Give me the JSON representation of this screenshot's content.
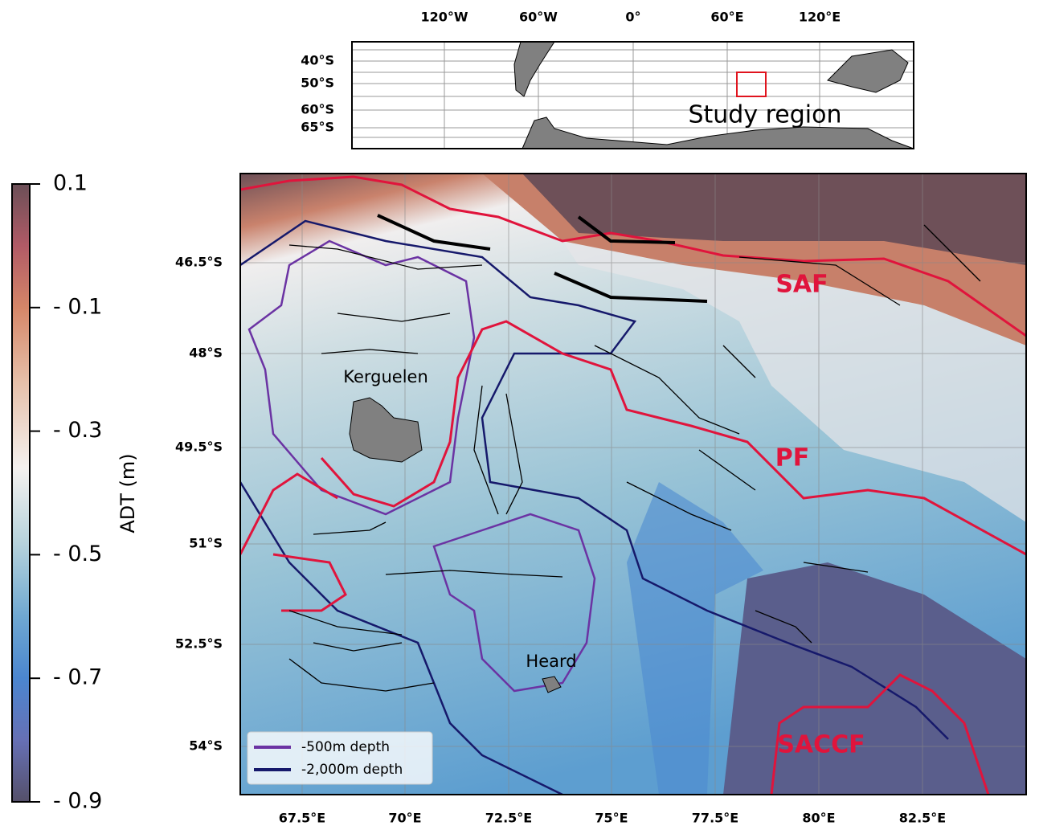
{
  "inset": {
    "xticks": [
      "120°W",
      "60°W",
      "0°",
      "60°E",
      "120°E"
    ],
    "yticks": [
      "40°S",
      "50°S",
      "60°S",
      "65°S"
    ],
    "label": "Study region"
  },
  "main": {
    "xticks": [
      "67.5°E",
      "70°E",
      "72.5°E",
      "75°E",
      "77.5°E",
      "80°E",
      "82.5°E"
    ],
    "yticks": [
      "46.5°S",
      "48°S",
      "49.5°S",
      "51°S",
      "52.5°S",
      "54°S"
    ],
    "place_labels": [
      "Kerguelen",
      "Heard"
    ],
    "front_labels": [
      "SAF",
      "PF",
      "SACCF"
    ],
    "legend": [
      {
        "name": "-500m depth",
        "color": "#6b33a3"
      },
      {
        "name": "-2,000m depth",
        "color": "#16196b"
      }
    ]
  },
  "colorbar": {
    "label": "ADT (m)",
    "lim": [
      -0.9,
      0.1
    ],
    "ticks": [
      0.1,
      {
        "value": -0.1,
        "label": "- 0.1"
      },
      {
        "value": -0.3,
        "label": "- 0.3"
      },
      {
        "value": -0.5,
        "label": "- 0.5"
      },
      {
        "value": -0.7,
        "label": "- 0.7"
      },
      {
        "value": -0.9,
        "label": "- 0.9"
      }
    ]
  }
}
